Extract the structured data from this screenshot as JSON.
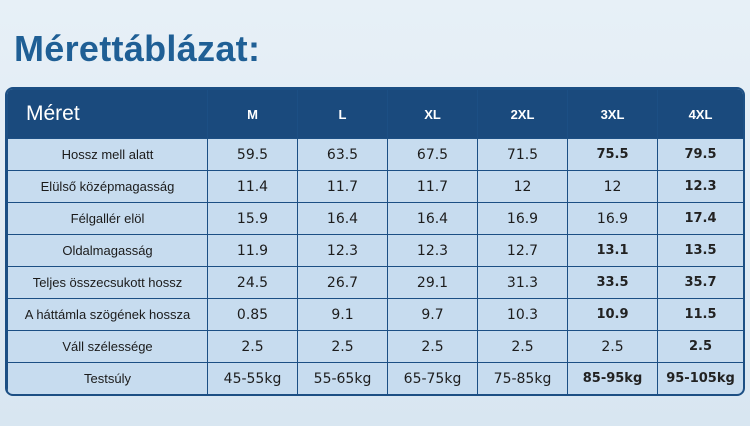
{
  "title": "Mérettáblázat:",
  "table": {
    "header": [
      "Méret",
      "M",
      "L",
      "XL",
      "2XL",
      "3XL",
      "4XL"
    ],
    "rows": [
      {
        "label": "Hossz mell alatt",
        "values": [
          "59.5",
          "63.5",
          "67.5",
          "71.5",
          "75.5",
          "79.5"
        ]
      },
      {
        "label": "Elülső középmagasság",
        "values": [
          "11.4",
          "11.7",
          "11.7",
          "12",
          "12",
          "12.3"
        ]
      },
      {
        "label": "Félgallér elöl",
        "values": [
          "15.9",
          "16.4",
          "16.4",
          "16.9",
          "16.9",
          "17.4"
        ]
      },
      {
        "label": "Oldalmagasság",
        "values": [
          "11.9",
          "12.3",
          "12.3",
          "12.7",
          "13.1",
          "13.5"
        ]
      },
      {
        "label": "Teljes összecsukott hossz",
        "values": [
          "24.5",
          "26.7",
          "29.1",
          "31.3",
          "33.5",
          "35.7"
        ]
      },
      {
        "label": "A háttámla szögének hossza",
        "values": [
          "0.85",
          "9.1",
          "9.7",
          "10.3",
          "10.9",
          "11.5"
        ]
      },
      {
        "label": "Váll szélessége",
        "values": [
          "2.5",
          "2.5",
          "2.5",
          "2.5",
          "2.5",
          "2.5"
        ]
      },
      {
        "label": "Testsúly",
        "values": [
          "45-55kg",
          "55-65kg",
          "65-75kg",
          "75-85kg",
          "85-95kg",
          "95-105kg"
        ]
      }
    ]
  }
}
